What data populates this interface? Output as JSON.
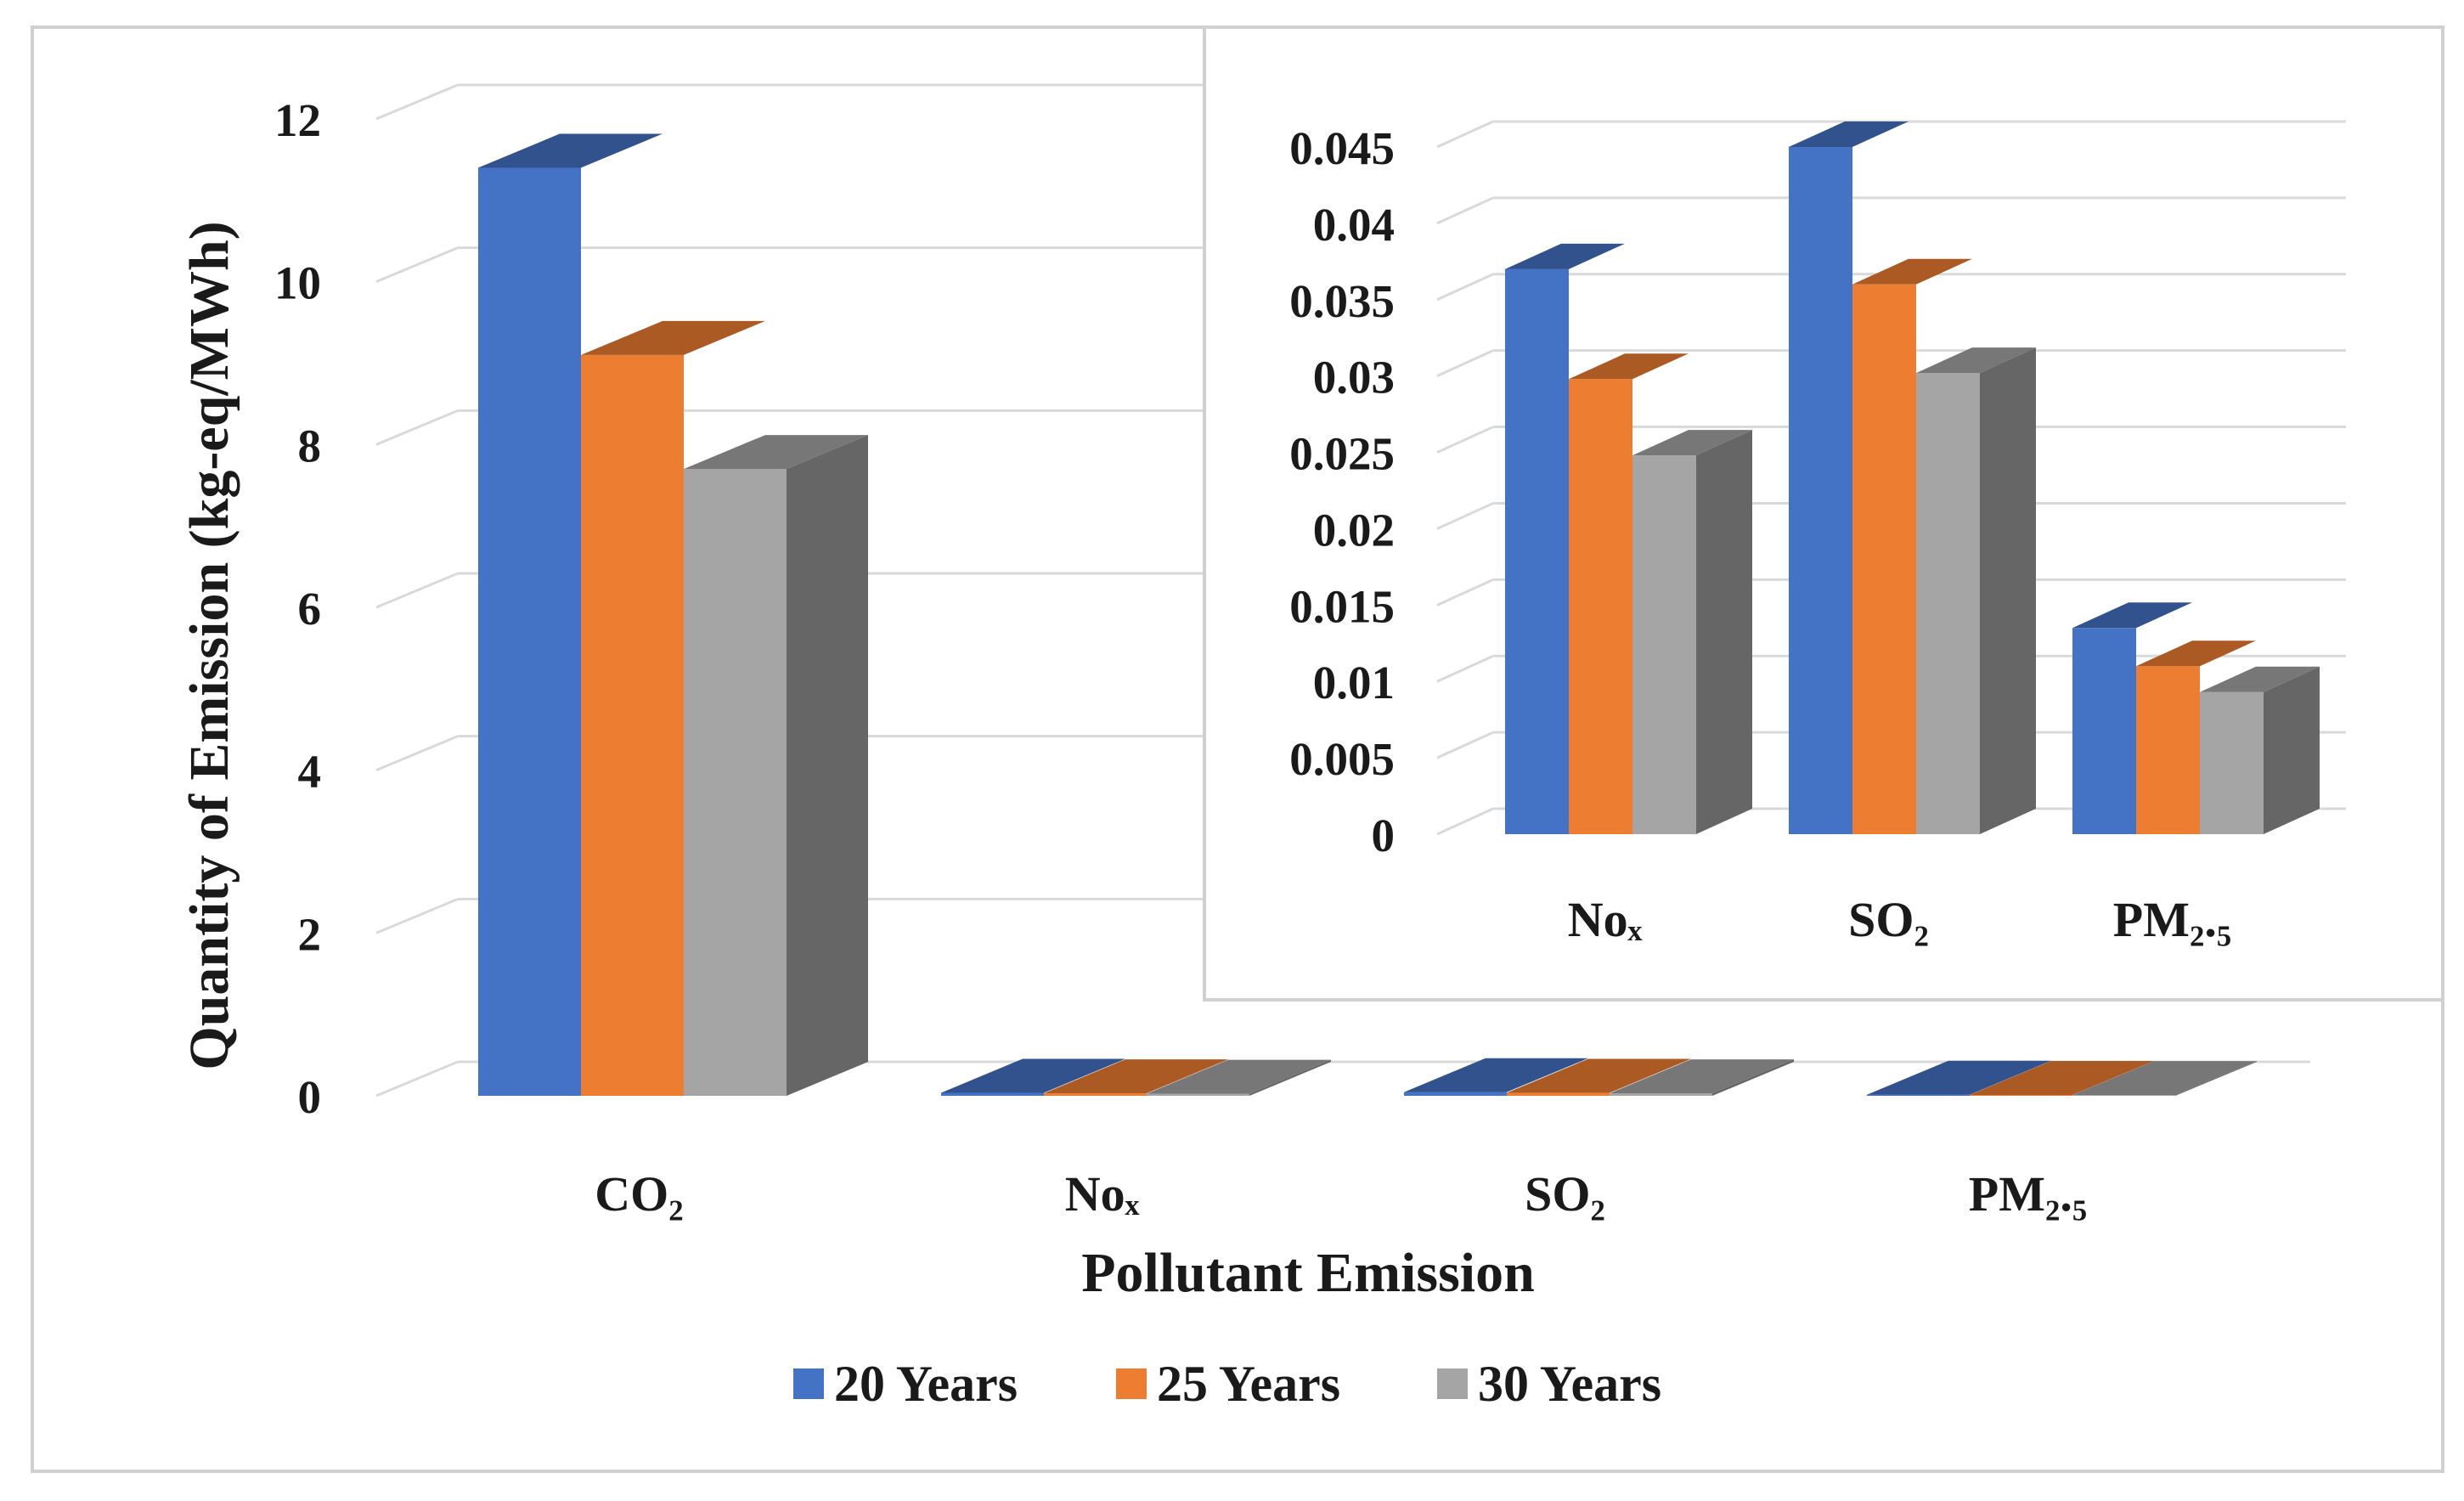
{
  "chart_data": [
    {
      "type": "bar",
      "view": "3d-clustered-column",
      "categories": [
        "CO₂",
        "Noₓ",
        "SO₂",
        "PM₂.₅"
      ],
      "series": [
        {
          "name": "20 Years",
          "color": "#4472c4",
          "values": [
            11.4,
            0.037,
            0.045,
            0.0135
          ]
        },
        {
          "name": "25 Years",
          "color": "#ed7d31",
          "values": [
            9.1,
            0.0298,
            0.036,
            0.011
          ]
        },
        {
          "name": "30 Years",
          "color": "#a5a5a5",
          "values": [
            7.7,
            0.0248,
            0.0302,
            0.0093
          ]
        }
      ],
      "xlabel": "Pollutant Emission",
      "ylabel": "Quantity of Emission (kg-eq/MWh)",
      "yticks": [
        "0",
        "2",
        "4",
        "6",
        "8",
        "10",
        "12"
      ],
      "ylim": [
        0,
        12
      ],
      "grid": true,
      "legend": "bottom"
    },
    {
      "type": "bar",
      "view": "3d-clustered-column-inset",
      "categories": [
        "Noₓ",
        "SO₂",
        "PM₂.₅"
      ],
      "series": [
        {
          "name": "20 Years",
          "color": "#4472c4",
          "values": [
            0.037,
            0.045,
            0.0135
          ]
        },
        {
          "name": "25 Years",
          "color": "#ed7d31",
          "values": [
            0.0298,
            0.036,
            0.011
          ]
        },
        {
          "name": "30 Years",
          "color": "#a5a5a5",
          "values": [
            0.0248,
            0.0302,
            0.0093
          ]
        }
      ],
      "yticks": [
        "0",
        "0.005",
        "0.01",
        "0.015",
        "0.02",
        "0.025",
        "0.03",
        "0.035",
        "0.04",
        "0.045"
      ],
      "ylim": [
        0,
        0.045
      ],
      "grid": true
    }
  ]
}
